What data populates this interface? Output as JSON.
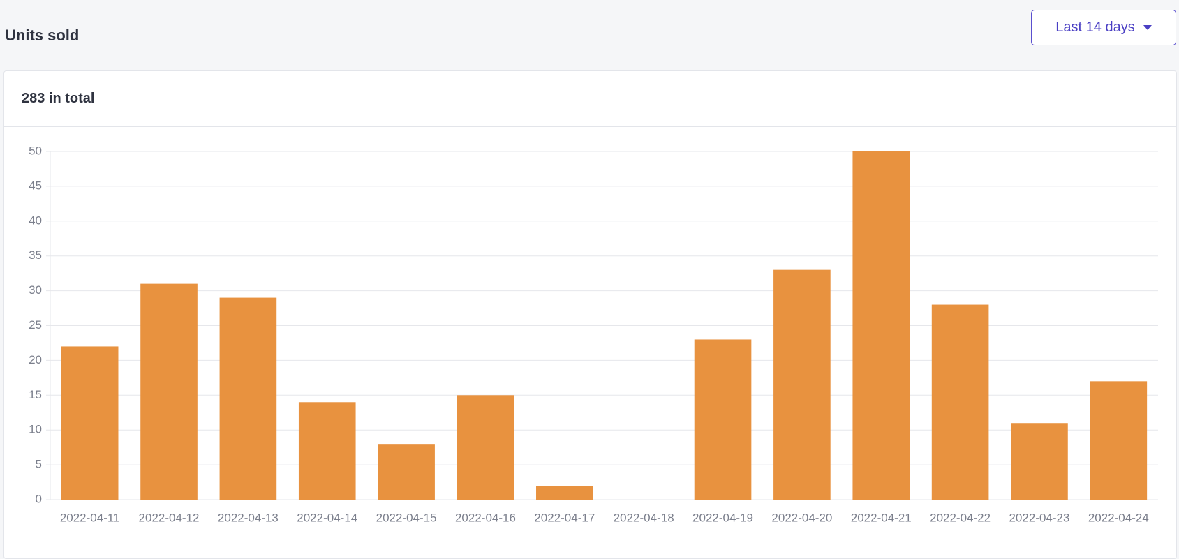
{
  "header": {
    "title": "Units sold",
    "range_button": "Last 14 days"
  },
  "card": {
    "total": "283 in total"
  },
  "chart_data": {
    "type": "bar",
    "categories": [
      "2022-04-11",
      "2022-04-12",
      "2022-04-13",
      "2022-04-14",
      "2022-04-15",
      "2022-04-16",
      "2022-04-17",
      "2022-04-18",
      "2022-04-19",
      "2022-04-20",
      "2022-04-21",
      "2022-04-22",
      "2022-04-23",
      "2022-04-24"
    ],
    "values": [
      22,
      31,
      29,
      14,
      8,
      15,
      2,
      0,
      23,
      33,
      50,
      28,
      11,
      17
    ],
    "color": "#e8923f",
    "ylim": [
      0,
      50
    ],
    "yticks": [
      0,
      5,
      10,
      15,
      20,
      25,
      30,
      35,
      40,
      45,
      50
    ],
    "grid": true
  }
}
